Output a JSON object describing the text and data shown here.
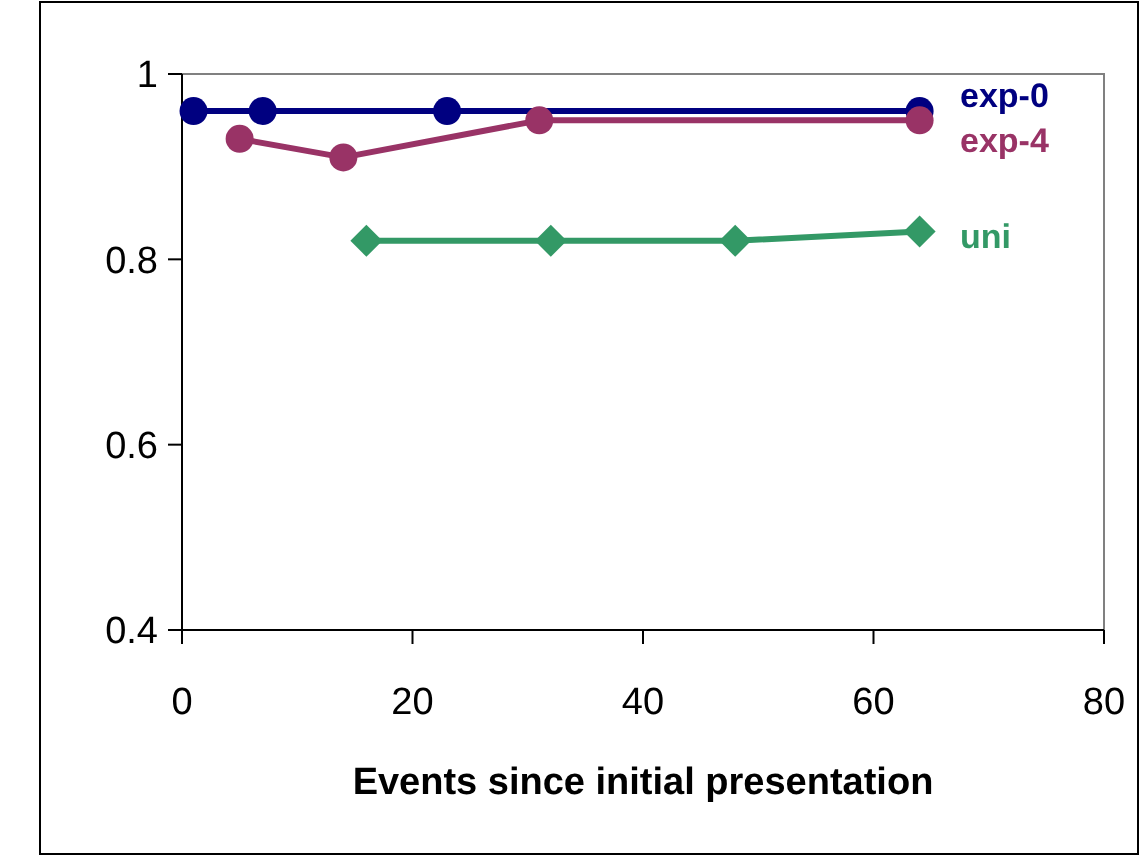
{
  "chart_data": {
    "type": "line",
    "xlabel": "Events since initial presentation",
    "xlim": [
      0,
      80
    ],
    "xticks": [
      0,
      20,
      40,
      60,
      80
    ],
    "ylim": [
      0.4,
      1
    ],
    "yticks": [
      0.4,
      0.6,
      0.8,
      1
    ],
    "grid": false,
    "line_style": "solid",
    "series": [
      {
        "name": "exp-0",
        "color": "#000080",
        "marker": "circle",
        "x": [
          1,
          7,
          23,
          64
        ],
        "values": [
          0.96,
          0.96,
          0.96,
          0.96
        ]
      },
      {
        "name": "exp-4",
        "color": "#993366",
        "marker": "circle",
        "x": [
          5,
          14,
          31,
          64
        ],
        "values": [
          0.93,
          0.91,
          0.95,
          0.95
        ]
      },
      {
        "name": "uni",
        "color": "#339966",
        "marker": "diamond",
        "x": [
          16,
          32,
          48,
          64
        ],
        "values": [
          0.82,
          0.82,
          0.82,
          0.83
        ]
      }
    ]
  }
}
